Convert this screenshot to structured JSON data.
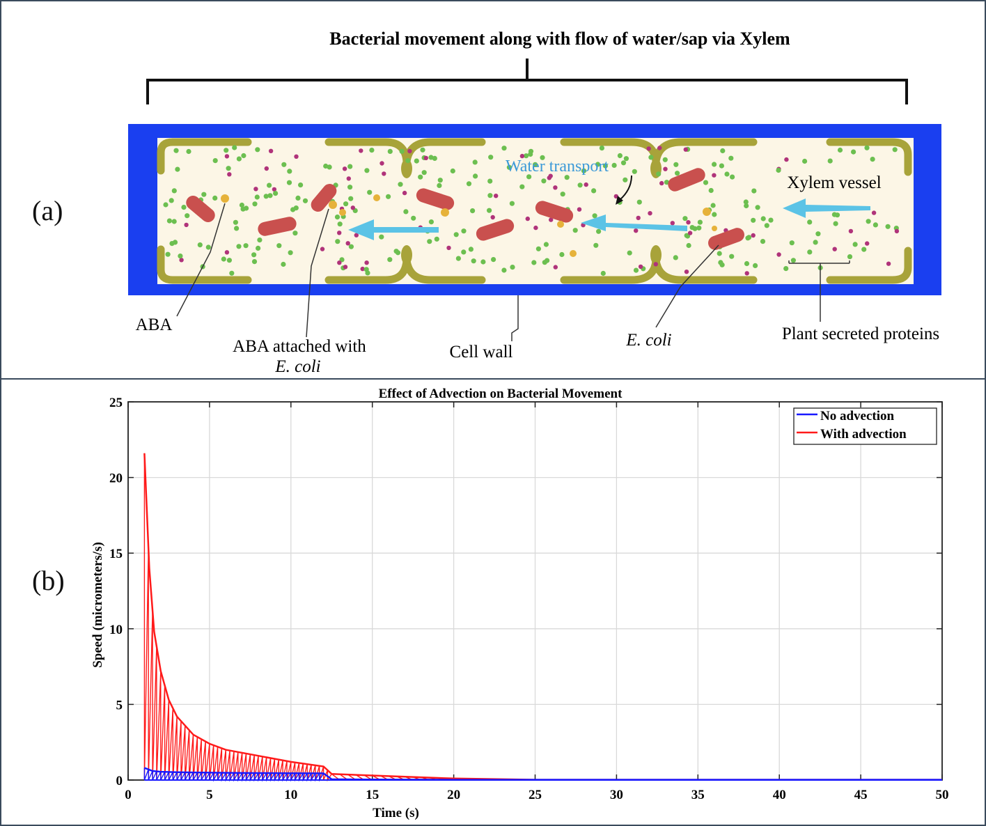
{
  "panel_a": {
    "label": "(a)",
    "title": "Bacterial movement along with flow of water/sap via Xylem",
    "water_transport": "Water transport",
    "xylem_vessel": "Xylem vessel",
    "aba": "ABA",
    "aba_attached_line1": "ABA attached with",
    "aba_attached_line2": "E. coli",
    "cell_wall": "Cell wall",
    "ecoli": "E. coli",
    "plant_proteins": "Plant secreted proteins",
    "colors": {
      "vessel_border": "#1a3ff0",
      "cell_fill": "#fcf6e6",
      "cell_wall": "#a8a33a",
      "bacterium": "#c9504e",
      "aba": "#e6b23a",
      "protein_green": "#6cbf50",
      "protein_magenta": "#b0337a",
      "arrow": "#5bc3e6",
      "water_text": "#3c9ad8"
    }
  },
  "panel_b": {
    "label": "(b)",
    "colors": {
      "no_advection": "#1818ff",
      "with_advection": "#ff1a1a"
    }
  },
  "chart_data": {
    "type": "line",
    "title": "Effect of Advection on Bacterial Movement",
    "xlabel": "Time (s)",
    "ylabel": "Speed (micrometers/s)",
    "xlim": [
      0,
      50
    ],
    "ylim": [
      0,
      25
    ],
    "xticks": [
      0,
      5,
      10,
      15,
      20,
      25,
      30,
      35,
      40,
      45,
      50
    ],
    "yticks": [
      0,
      5,
      10,
      15,
      20,
      25
    ],
    "grid": true,
    "legend_position": "top-right",
    "series": [
      {
        "name": "No advection",
        "x": [
          1,
          1.5,
          2,
          3,
          4,
          6,
          8,
          10,
          12,
          12.5,
          15,
          20,
          50
        ],
        "y": [
          0.8,
          0.6,
          0.55,
          0.52,
          0.5,
          0.48,
          0.46,
          0.45,
          0.44,
          0.05,
          0.03,
          0.02,
          0.02
        ]
      },
      {
        "name": "With advection",
        "x": [
          1,
          1.3,
          1.6,
          2,
          2.5,
          3,
          4,
          5,
          6,
          8,
          10,
          12,
          12.5,
          15,
          20,
          25,
          50
        ],
        "y": [
          21.6,
          14,
          9.8,
          7.2,
          5.3,
          4.2,
          3.0,
          2.4,
          2.0,
          1.6,
          1.2,
          0.9,
          0.4,
          0.3,
          0.1,
          0.02,
          0.02
        ]
      }
    ]
  }
}
